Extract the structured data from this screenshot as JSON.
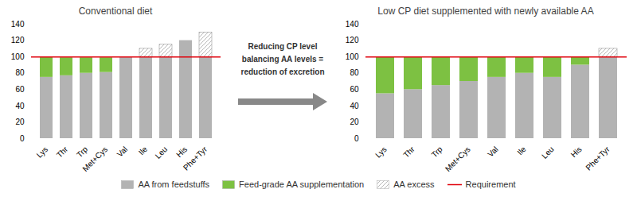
{
  "chart_data": [
    {
      "type": "bar",
      "stacked": true,
      "grid": false,
      "title": "Conventional diet",
      "categories": [
        "Lys",
        "Thr",
        "Trp",
        "Met+Cys",
        "Val",
        "Ile",
        "Leu",
        "His",
        "Phe+Tyr"
      ],
      "series": [
        {
          "name": "AA from feedstuffs",
          "color": "#b3b3b3",
          "values": [
            75,
            77,
            80,
            81,
            100,
            100,
            100,
            120,
            100
          ]
        },
        {
          "name": "Feed-grade AA supplementation",
          "color": "#7dc142",
          "values": [
            25,
            22,
            19,
            18,
            0,
            0,
            0,
            0,
            0
          ]
        },
        {
          "name": "AA excess",
          "color": "#ffffff",
          "values": [
            0,
            0,
            0,
            0,
            0,
            10,
            15,
            0,
            30
          ]
        }
      ],
      "requirement": {
        "name": "Requirement",
        "value": 100,
        "color": "#e0000a"
      },
      "ylim": [
        0,
        140
      ],
      "yticks": [
        0,
        20,
        40,
        60,
        80,
        100,
        120,
        140
      ]
    },
    {
      "type": "bar",
      "stacked": true,
      "grid": false,
      "title": "Low CP diet supplemented with newly available AA",
      "categories": [
        "Lys",
        "Thr",
        "Trp",
        "Met+Cys",
        "Val",
        "Ile",
        "Leu",
        "His",
        "Phe+Tyr"
      ],
      "series": [
        {
          "name": "AA from feedstuffs",
          "color": "#b3b3b3",
          "values": [
            55,
            60,
            65,
            70,
            75,
            80,
            75,
            90,
            100
          ]
        },
        {
          "name": "Feed-grade AA supplementation",
          "color": "#7dc142",
          "values": [
            45,
            40,
            35,
            30,
            25,
            20,
            25,
            10,
            0
          ]
        },
        {
          "name": "AA excess",
          "color": "#ffffff",
          "values": [
            0,
            0,
            0,
            0,
            0,
            0,
            0,
            0,
            10
          ]
        }
      ],
      "requirement": {
        "name": "Requirement",
        "value": 100,
        "color": "#e0000a"
      },
      "ylim": [
        0,
        140
      ],
      "yticks": [
        0,
        20,
        40,
        60,
        80,
        100,
        120,
        140
      ]
    }
  ],
  "annotation": "Reducing CP level\nbalancing AA levels =\nreduction of excretion"
}
